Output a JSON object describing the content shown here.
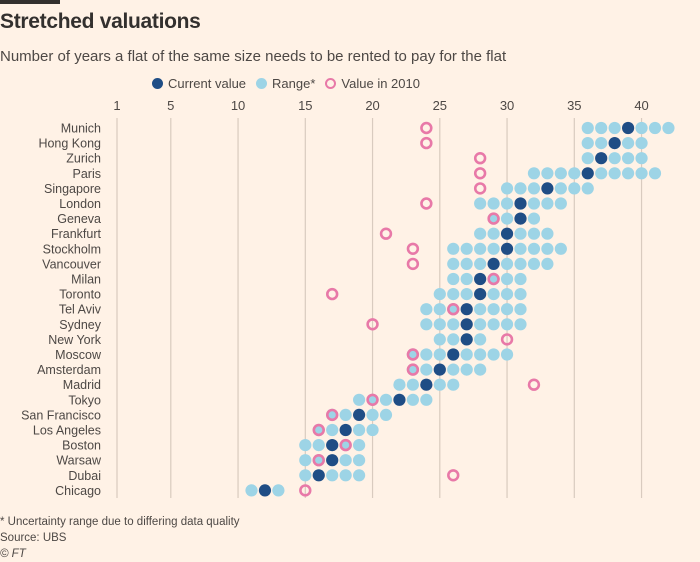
{
  "header": {
    "title": "Stretched valuations",
    "subtitle": "Number of years a flat of the same size needs to be rented to pay for the flat"
  },
  "legend": {
    "current": "Current value",
    "range": "Range*",
    "value2010": "Value in 2010"
  },
  "colors": {
    "current": "#1f4d85",
    "range": "#9dd4e6",
    "value2010": "#e879a8",
    "grid": "#d9cbbf"
  },
  "footer": {
    "note": "* Uncertainty range due to differing data quality",
    "source": "Source: UBS",
    "copyright": "© FT"
  },
  "chart_data": {
    "type": "scatter",
    "xlim": [
      1,
      42
    ],
    "xticks": [
      1,
      5,
      10,
      15,
      20,
      25,
      30,
      35,
      40
    ],
    "grid": true,
    "legend_position": "top",
    "rows": [
      {
        "city": "Munich",
        "low": 36,
        "high": 42,
        "current": 39,
        "v2010": 24
      },
      {
        "city": "Hong Kong",
        "low": 36,
        "high": 40,
        "current": 38,
        "v2010": 24
      },
      {
        "city": "Zurich",
        "low": 36,
        "high": 40,
        "current": 37,
        "v2010": 28
      },
      {
        "city": "Paris",
        "low": 32,
        "high": 41,
        "current": 36,
        "v2010": 28
      },
      {
        "city": "Singapore",
        "low": 30,
        "high": 36,
        "current": 33,
        "v2010": 28
      },
      {
        "city": "London",
        "low": 28,
        "high": 34,
        "current": 31,
        "v2010": 24
      },
      {
        "city": "Geneva",
        "low": 29,
        "high": 32,
        "current": 31,
        "v2010": 29
      },
      {
        "city": "Frankfurt",
        "low": 28,
        "high": 33,
        "current": 30,
        "v2010": 21
      },
      {
        "city": "Stockholm",
        "low": 26,
        "high": 34,
        "current": 30,
        "v2010": 23
      },
      {
        "city": "Vancouver",
        "low": 26,
        "high": 33,
        "current": 29,
        "v2010": 23
      },
      {
        "city": "Milan",
        "low": 26,
        "high": 31,
        "current": 28,
        "v2010": 29
      },
      {
        "city": "Toronto",
        "low": 25,
        "high": 31,
        "current": 28,
        "v2010": 17
      },
      {
        "city": "Tel Aviv",
        "low": 24,
        "high": 31,
        "current": 27,
        "v2010": 26
      },
      {
        "city": "Sydney",
        "low": 24,
        "high": 31,
        "current": 27,
        "v2010": 20
      },
      {
        "city": "New York",
        "low": 25,
        "high": 28,
        "current": 27,
        "v2010": 30
      },
      {
        "city": "Moscow",
        "low": 23,
        "high": 30,
        "current": 26,
        "v2010": 23
      },
      {
        "city": "Amsterdam",
        "low": 23,
        "high": 28,
        "current": 25,
        "v2010": 23
      },
      {
        "city": "Madrid",
        "low": 22,
        "high": 26,
        "current": 24,
        "v2010": 32
      },
      {
        "city": "Tokyo",
        "low": 19,
        "high": 24,
        "current": 22,
        "v2010": 20
      },
      {
        "city": "San Francisco",
        "low": 17,
        "high": 21,
        "current": 19,
        "v2010": 17
      },
      {
        "city": "Los Angeles",
        "low": 16,
        "high": 20,
        "current": 18,
        "v2010": 16
      },
      {
        "city": "Boston",
        "low": 15,
        "high": 19,
        "current": 17,
        "v2010": 18
      },
      {
        "city": "Warsaw",
        "low": 15,
        "high": 19,
        "current": 17,
        "v2010": 16
      },
      {
        "city": "Dubai",
        "low": 15,
        "high": 19,
        "current": 16,
        "v2010": 26
      },
      {
        "city": "Chicago",
        "low": 11,
        "high": 13,
        "current": 12,
        "v2010": 15
      }
    ]
  }
}
